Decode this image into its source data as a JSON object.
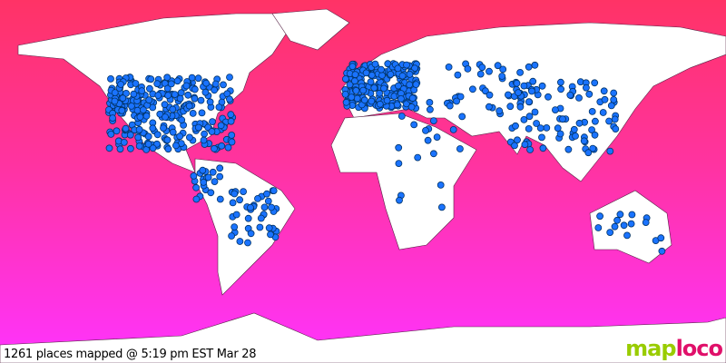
{
  "status_text": "1261 places mapped @ 5:19 pm EST Mar 28",
  "logo": {
    "part1": "map",
    "part2": "loco"
  },
  "colors": {
    "sea_top": "#ff3366",
    "sea_bottom": "#ff33ff",
    "land": "#ffffff",
    "marker": "#1a73ff",
    "logo_green": "#99cc00",
    "logo_pink": "#e0106a"
  }
}
